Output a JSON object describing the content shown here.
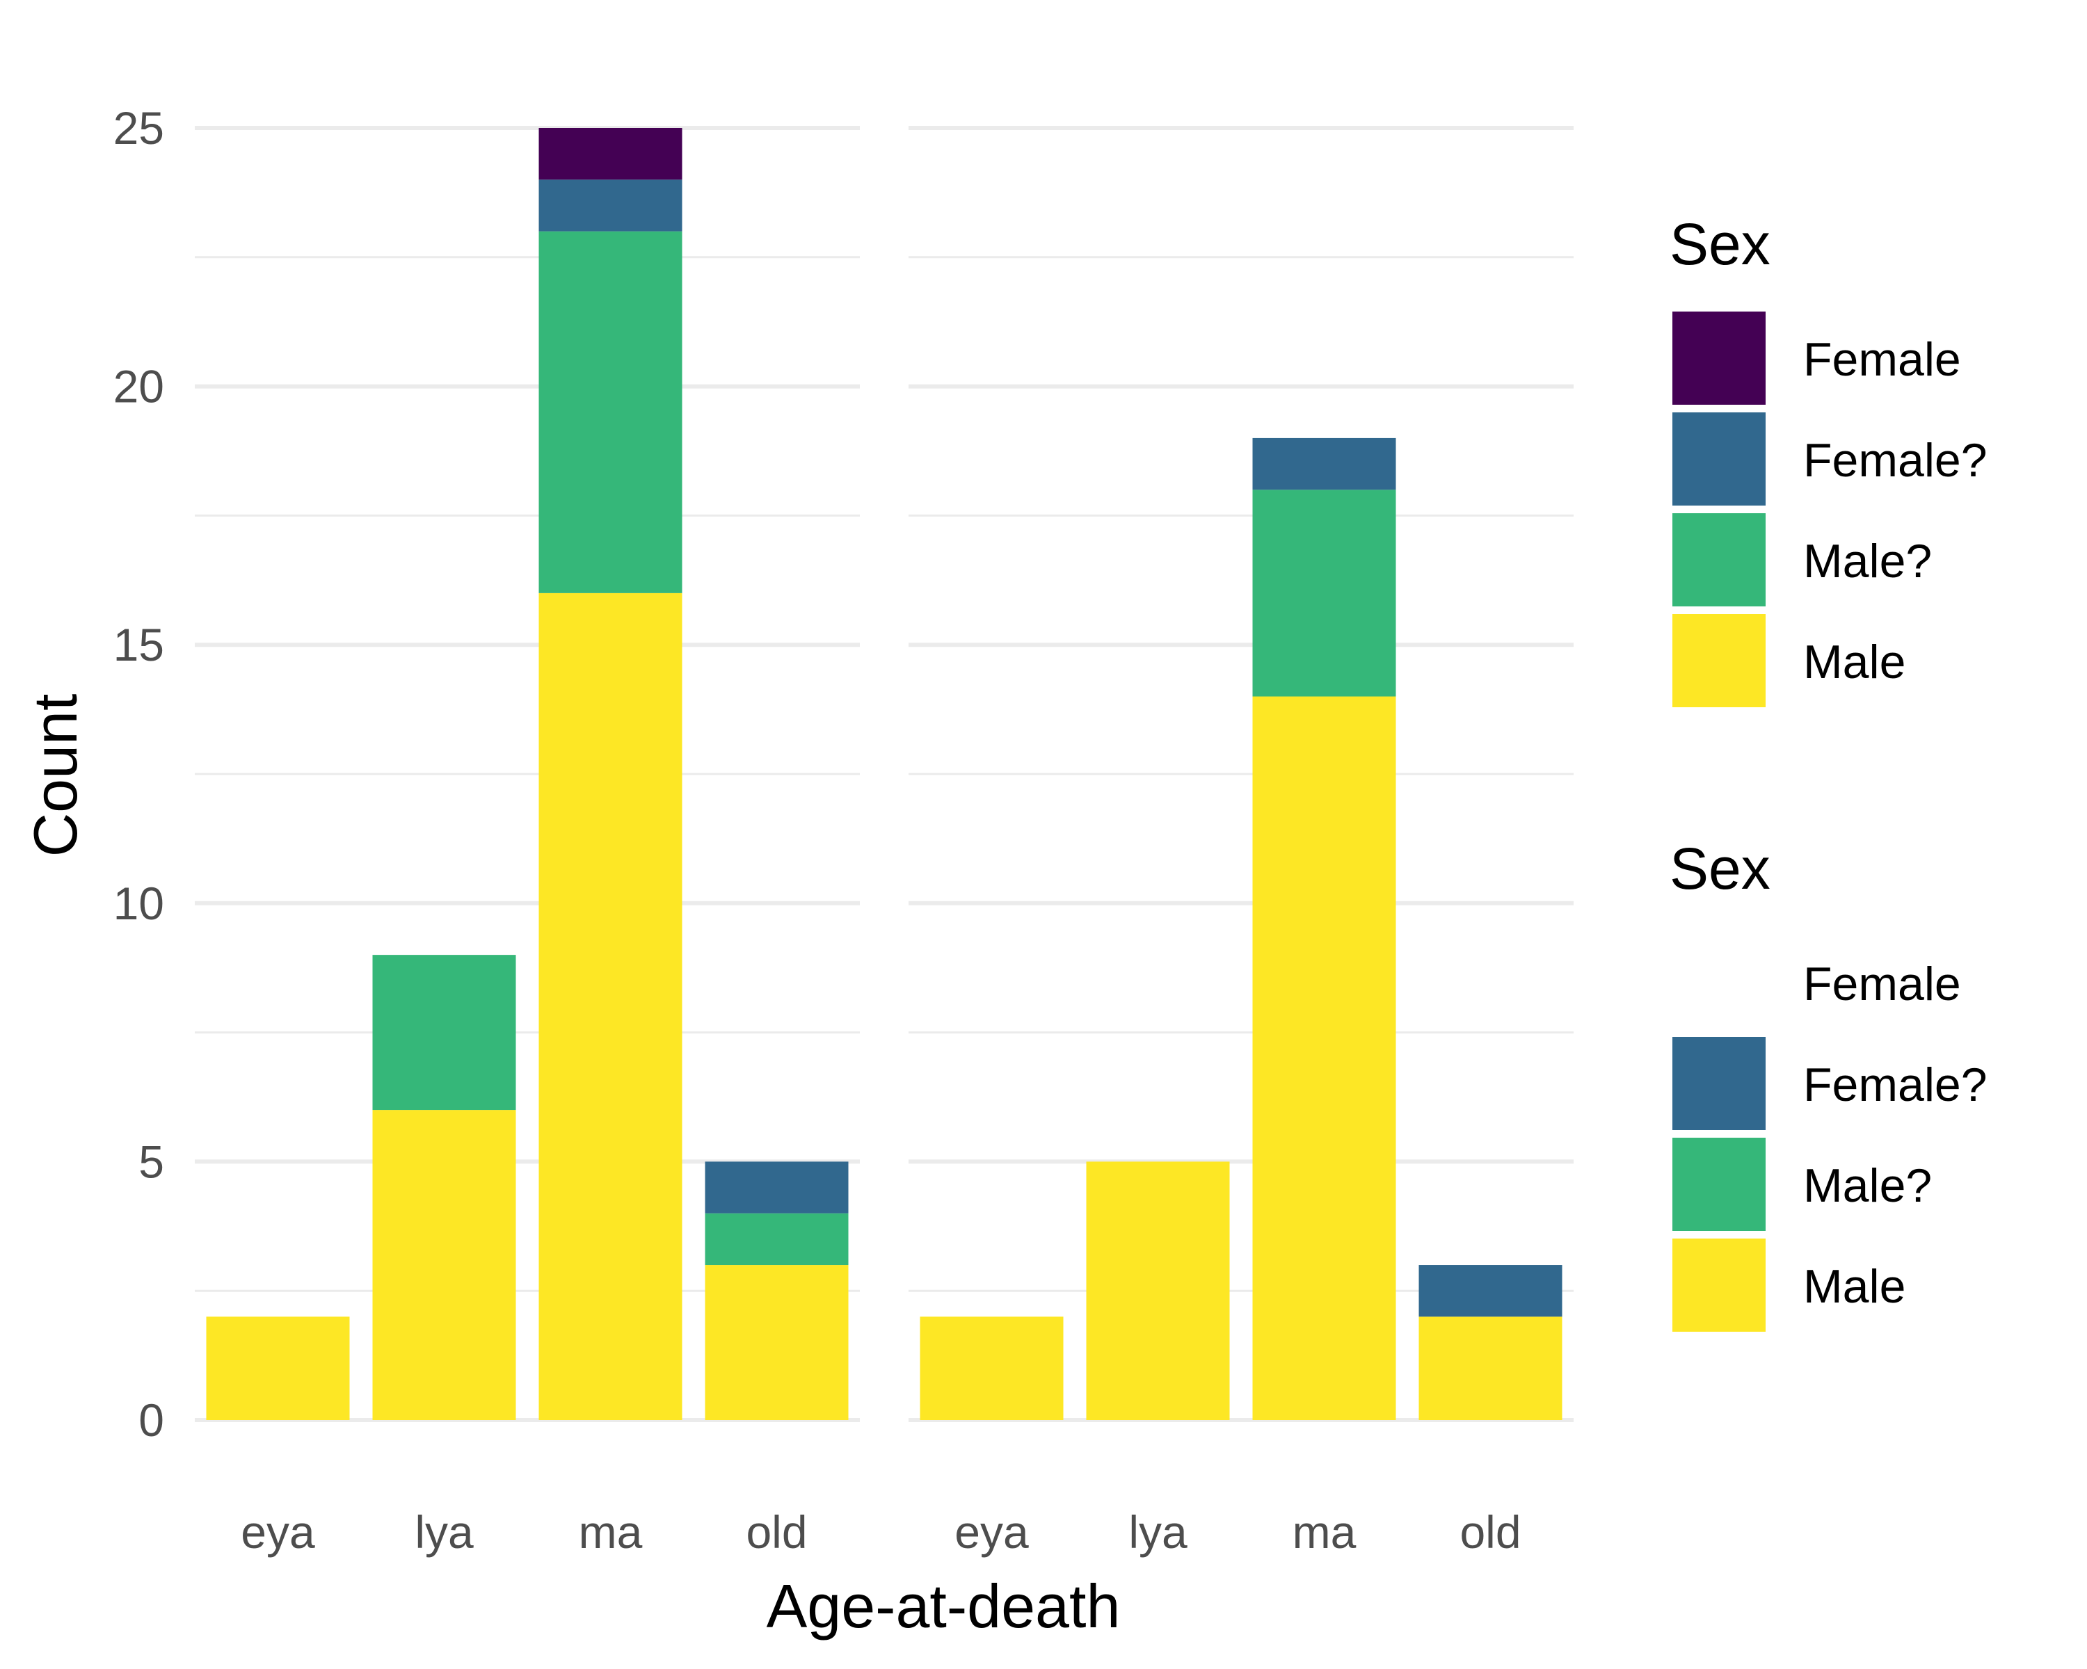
{
  "chart_data": {
    "type": "bar",
    "stacked": true,
    "xlabel": "Age-at-death",
    "ylabel": "Count",
    "ylim": [
      0,
      25
    ],
    "yticks": [
      0,
      5,
      10,
      15,
      20,
      25
    ],
    "grid": true,
    "legend_position": "right",
    "categories": [
      "eya",
      "lya",
      "ma",
      "old"
    ],
    "panels": [
      {
        "series": [
          {
            "name": "Male",
            "color": "#FDE725",
            "values": [
              2,
              6,
              16,
              3
            ]
          },
          {
            "name": "Male?",
            "color": "#35B779",
            "values": [
              0,
              3,
              7,
              1
            ]
          },
          {
            "name": "Female?",
            "color": "#31688E",
            "values": [
              0,
              0,
              1,
              1
            ]
          },
          {
            "name": "Female",
            "color": "#440154",
            "values": [
              0,
              0,
              1,
              0
            ]
          }
        ]
      },
      {
        "series": [
          {
            "name": "Male",
            "color": "#FDE725",
            "values": [
              2,
              5,
              14,
              2
            ]
          },
          {
            "name": "Male?",
            "color": "#35B779",
            "values": [
              0,
              0,
              4,
              0
            ]
          },
          {
            "name": "Female?",
            "color": "#31688E",
            "values": [
              0,
              0,
              1,
              1
            ]
          },
          {
            "name": "Female",
            "color": "#440154",
            "values": [
              0,
              0,
              0,
              0
            ]
          }
        ]
      }
    ],
    "legends": [
      {
        "title": "Sex",
        "items": [
          {
            "label": "Female",
            "color": "#440154"
          },
          {
            "label": "Female?",
            "color": "#31688E"
          },
          {
            "label": "Male?",
            "color": "#35B779"
          },
          {
            "label": "Male",
            "color": "#FDE725"
          }
        ]
      },
      {
        "title": "Sex",
        "items": [
          {
            "label": "Female",
            "color": ""
          },
          {
            "label": "Female?",
            "color": "#31688E"
          },
          {
            "label": "Male?",
            "color": "#35B779"
          },
          {
            "label": "Male",
            "color": "#FDE725"
          }
        ]
      }
    ],
    "colors": {
      "grid": "#EBEBEB",
      "tick_text": "#4D4D4D"
    }
  }
}
